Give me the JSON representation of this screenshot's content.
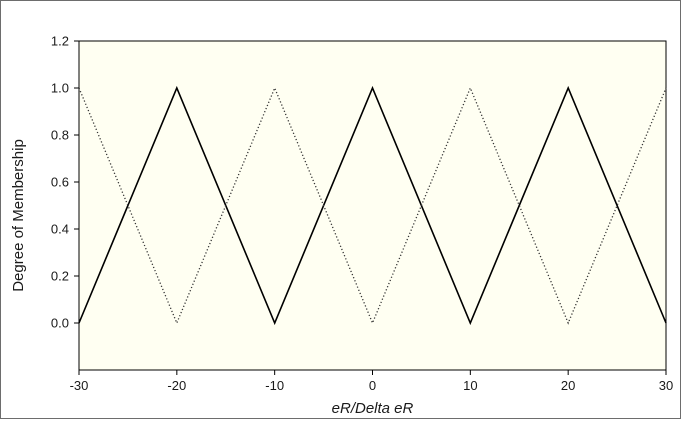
{
  "chart_data": {
    "type": "line",
    "title": "",
    "xlabel": "eR/Delta eR",
    "ylabel": "Degree of Membership",
    "xlim": [
      -30,
      30
    ],
    "ylim": [
      -0.2,
      1.2
    ],
    "x_ticks": [
      -30,
      -20,
      -10,
      0,
      10,
      20,
      30
    ],
    "y_ticks": [
      0.0,
      0.2,
      0.4,
      0.6,
      0.8,
      1.0,
      1.2
    ],
    "x_tick_labels": [
      "-30",
      "-20",
      "-10",
      "0",
      "10",
      "20",
      "30"
    ],
    "y_tick_labels": [
      "0.0",
      "0.2",
      "0.4",
      "0.6",
      "0.8",
      "1.0",
      "1.2"
    ],
    "grid": false,
    "legend": "none",
    "plot_background": "#fffff2",
    "series": [
      {
        "style": "solid",
        "color": "#000000",
        "x": [
          -30,
          -20,
          -10,
          0,
          10,
          20,
          30
        ],
        "y": [
          0.0,
          1.0,
          0.0,
          1.0,
          0.0,
          1.0,
          0.0
        ]
      },
      {
        "style": "dotted",
        "color": "#333333",
        "x": [
          -30,
          -20,
          -10,
          0,
          10,
          20,
          30
        ],
        "y": [
          1.0,
          0.0,
          1.0,
          0.0,
          1.0,
          0.0,
          1.0
        ]
      }
    ]
  }
}
